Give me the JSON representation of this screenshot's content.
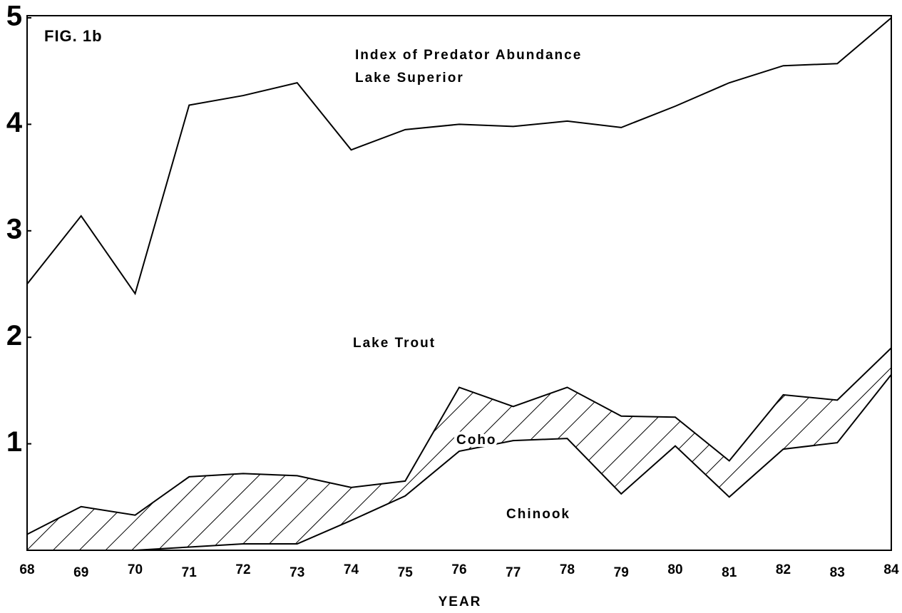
{
  "chart_data": {
    "type": "stacked_area",
    "figure_label": "FIG. 1b",
    "title": "Index of Predator Abundance",
    "subtitle": "Lake Superior",
    "x_label": "YEAR",
    "categories": [
      "68",
      "69",
      "70",
      "71",
      "72",
      "73",
      "74",
      "75",
      "76",
      "77",
      "78",
      "79",
      "80",
      "81",
      "82",
      "83",
      "84"
    ],
    "series": [
      {
        "name": "Chinook",
        "color": "#000000",
        "fill": "none",
        "values": [
          0,
          0,
          0,
          0.03,
          0.06,
          0.06,
          0.28,
          0.51,
          0.93,
          1.03,
          1.05,
          0.53,
          0.98,
          0.5,
          0.95,
          1.01,
          1.65
        ]
      },
      {
        "name": "Coho",
        "color": "#000000",
        "fill": "hatch",
        "values": [
          0.15,
          0.41,
          0.33,
          0.66,
          0.66,
          0.64,
          0.31,
          0.14,
          0.6,
          0.32,
          0.48,
          0.73,
          0.27,
          0.34,
          0.51,
          0.4,
          0.25
        ]
      },
      {
        "name": "Lake Trout",
        "color": "#000000",
        "fill": "none",
        "values": [
          2.35,
          2.73,
          2.08,
          3.49,
          3.55,
          3.69,
          3.17,
          3.3,
          2.47,
          2.63,
          2.5,
          2.71,
          2.92,
          3.55,
          3.09,
          3.16,
          3.1
        ]
      }
    ],
    "ylim": [
      0,
      5
    ],
    "yticks": [
      1,
      2,
      3,
      4,
      5
    ],
    "grid": false
  }
}
